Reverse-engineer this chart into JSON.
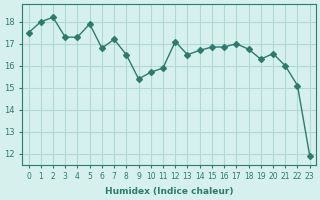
{
  "x": [
    0,
    1,
    2,
    3,
    4,
    5,
    6,
    7,
    8,
    9,
    10,
    11,
    12,
    13,
    14,
    15,
    16,
    17,
    18,
    19,
    20,
    21,
    22,
    23
  ],
  "y": [
    17.5,
    18.0,
    18.2,
    17.3,
    17.3,
    17.9,
    16.8,
    17.2,
    16.5,
    15.4,
    15.7,
    15.9,
    17.1,
    16.5,
    16.7,
    16.85,
    16.85,
    17.0,
    16.75,
    16.3,
    16.55,
    16.0,
    15.1,
    11.9
  ],
  "line_color": "#2e7b6e",
  "marker": "D",
  "markersize": 3,
  "bg_color": "#d6f0ed",
  "grid_color": "#b0d8d4",
  "xlabel": "Humidex (Indice chaleur)",
  "ylim": [
    11.5,
    18.8
  ],
  "xlim": [
    -0.5,
    23.5
  ],
  "yticks": [
    12,
    13,
    14,
    15,
    16,
    17,
    18
  ],
  "xticks": [
    0,
    1,
    2,
    3,
    4,
    5,
    6,
    7,
    8,
    9,
    10,
    11,
    12,
    13,
    14,
    15,
    16,
    17,
    18,
    19,
    20,
    21,
    22,
    23
  ]
}
